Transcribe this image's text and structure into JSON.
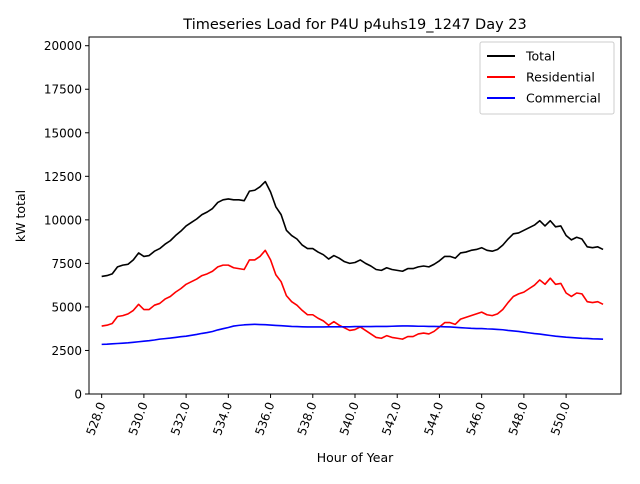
{
  "chart_data": {
    "type": "line",
    "title": "Timeseries Load for P4U p4uhs19_1247  Day 23",
    "xlabel": "Hour of Year",
    "ylabel": "kW total",
    "xlim": [
      527.4,
      552.6
    ],
    "ylim": [
      0,
      20500
    ],
    "xticks": [
      528.0,
      530.0,
      532.0,
      534.0,
      536.0,
      538.0,
      540.0,
      542.0,
      544.0,
      546.0,
      548.0,
      550.0
    ],
    "xtick_labels": [
      "528.0",
      "530.0",
      "532.0",
      "534.0",
      "536.0",
      "538.0",
      "540.0",
      "542.0",
      "544.0",
      "546.0",
      "548.0",
      "550.0"
    ],
    "yticks": [
      0,
      2500,
      5000,
      7500,
      10000,
      12500,
      15000,
      17500,
      20000
    ],
    "ytick_labels": [
      "0",
      "2500",
      "5000",
      "7500",
      "10000",
      "12500",
      "15000",
      "17500",
      "20000"
    ],
    "grid": false,
    "legend_position": "top-right",
    "x_start": 528.0,
    "x_step": 0.25,
    "series": [
      {
        "name": "Total",
        "color": "#000000",
        "values": [
          6750,
          6800,
          6900,
          7300,
          7400,
          7450,
          7700,
          8100,
          7900,
          7950,
          8200,
          8350,
          8600,
          8800,
          9100,
          9350,
          9650,
          9850,
          10050,
          10300,
          10450,
          10650,
          11000,
          11150,
          11200,
          11150,
          11150,
          11100,
          11650,
          11700,
          11900,
          12200,
          11600,
          10750,
          10300,
          9400,
          9100,
          8900,
          8550,
          8350,
          8350,
          8150,
          8000,
          7750,
          7950,
          7800,
          7600,
          7500,
          7550,
          7700,
          7500,
          7350,
          7150,
          7100,
          7250,
          7150,
          7100,
          7050,
          7200,
          7200,
          7300,
          7350,
          7300,
          7450,
          7650,
          7900,
          7900,
          7800,
          8100,
          8150,
          8250,
          8300,
          8400,
          8250,
          8200,
          8300,
          8550,
          8900,
          9200,
          9250,
          9400,
          9550,
          9700,
          9950,
          9650,
          9950,
          9600,
          9650,
          9100,
          8850,
          9000,
          8900,
          8450,
          8400,
          8450,
          8300
        ]
      },
      {
        "name": "Residential",
        "color": "#ff0000",
        "values": [
          3900,
          3950,
          4050,
          4450,
          4500,
          4600,
          4800,
          5150,
          4850,
          4850,
          5100,
          5200,
          5450,
          5600,
          5850,
          6050,
          6300,
          6450,
          6600,
          6800,
          6900,
          7050,
          7300,
          7400,
          7400,
          7250,
          7200,
          7150,
          7700,
          7700,
          7900,
          8250,
          7700,
          6850,
          6450,
          5650,
          5300,
          5100,
          4800,
          4550,
          4550,
          4350,
          4200,
          3950,
          4150,
          3950,
          3800,
          3650,
          3700,
          3850,
          3650,
          3450,
          3250,
          3200,
          3350,
          3250,
          3200,
          3150,
          3300,
          3300,
          3450,
          3500,
          3450,
          3600,
          3850,
          4100,
          4100,
          4000,
          4300,
          4400,
          4500,
          4600,
          4700,
          4550,
          4500,
          4600,
          4850,
          5250,
          5600,
          5750,
          5850,
          6050,
          6250,
          6550,
          6300,
          6650,
          6300,
          6350,
          5800,
          5600,
          5800,
          5750,
          5300,
          5250,
          5300,
          5150
        ]
      },
      {
        "name": "Commercial",
        "color": "#0000ff",
        "values": [
          2850,
          2860,
          2880,
          2900,
          2920,
          2940,
          2970,
          3000,
          3030,
          3060,
          3100,
          3150,
          3180,
          3210,
          3250,
          3290,
          3320,
          3370,
          3420,
          3480,
          3530,
          3590,
          3680,
          3750,
          3820,
          3900,
          3940,
          3970,
          3990,
          4000,
          3990,
          3980,
          3960,
          3940,
          3920,
          3900,
          3880,
          3870,
          3860,
          3850,
          3850,
          3850,
          3850,
          3860,
          3860,
          3860,
          3860,
          3860,
          3870,
          3870,
          3870,
          3870,
          3880,
          3880,
          3880,
          3890,
          3900,
          3910,
          3910,
          3900,
          3890,
          3890,
          3880,
          3880,
          3870,
          3860,
          3850,
          3830,
          3810,
          3790,
          3770,
          3760,
          3760,
          3740,
          3730,
          3710,
          3690,
          3650,
          3620,
          3590,
          3550,
          3510,
          3470,
          3440,
          3400,
          3360,
          3320,
          3290,
          3260,
          3240,
          3220,
          3200,
          3190,
          3170,
          3160,
          3150
        ]
      }
    ]
  }
}
